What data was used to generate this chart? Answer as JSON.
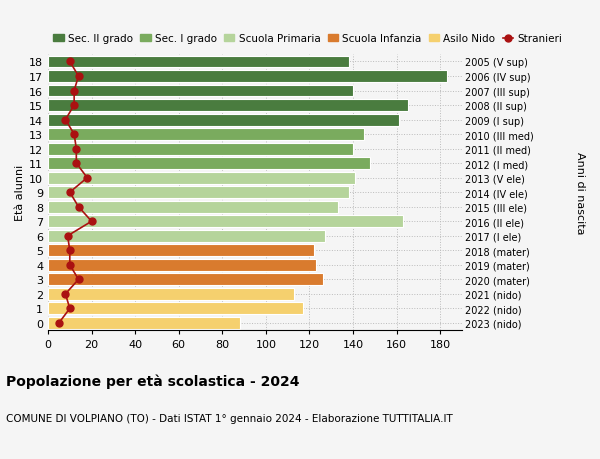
{
  "ages": [
    0,
    1,
    2,
    3,
    4,
    5,
    6,
    7,
    8,
    9,
    10,
    11,
    12,
    13,
    14,
    15,
    16,
    17,
    18
  ],
  "years": [
    "2023 (nido)",
    "2022 (nido)",
    "2021 (nido)",
    "2020 (mater)",
    "2019 (mater)",
    "2018 (mater)",
    "2017 (I ele)",
    "2016 (II ele)",
    "2015 (III ele)",
    "2014 (IV ele)",
    "2013 (V ele)",
    "2012 (I med)",
    "2011 (II med)",
    "2010 (III med)",
    "2009 (I sup)",
    "2008 (II sup)",
    "2007 (III sup)",
    "2006 (IV sup)",
    "2005 (V sup)"
  ],
  "values": [
    88,
    117,
    113,
    126,
    123,
    122,
    127,
    163,
    133,
    138,
    141,
    148,
    140,
    145,
    161,
    165,
    140,
    183,
    138
  ],
  "stranieri": [
    5,
    10,
    8,
    14,
    10,
    10,
    9,
    20,
    14,
    10,
    18,
    13,
    13,
    12,
    8,
    12,
    12,
    14,
    10
  ],
  "bar_colors": {
    "sec2": "#4a7c3f",
    "sec1": "#7aab5e",
    "primaria": "#b5d49b",
    "infanzia": "#d97b2e",
    "nido": "#f5d06e"
  },
  "categories": {
    "sec2": [
      14,
      15,
      16,
      17,
      18
    ],
    "sec1": [
      11,
      12,
      13
    ],
    "primaria": [
      6,
      7,
      8,
      9,
      10
    ],
    "infanzia": [
      3,
      4,
      5
    ],
    "nido": [
      0,
      1,
      2
    ]
  },
  "title": "Popolazione per età scolastica - 2024",
  "subtitle": "COMUNE DI VOLPIANO (TO) - Dati ISTAT 1° gennaio 2024 - Elaborazione TUTTITALIA.IT",
  "ylabel": "Età alunni",
  "right_ylabel": "Anni di nascita",
  "xlim": [
    0,
    190
  ],
  "xticks": [
    0,
    20,
    40,
    60,
    80,
    100,
    120,
    140,
    160,
    180
  ],
  "legend_labels": [
    "Sec. II grado",
    "Sec. I grado",
    "Scuola Primaria",
    "Scuola Infanzia",
    "Asilo Nido",
    "Stranieri"
  ],
  "legend_colors": [
    "#4a7c3f",
    "#7aab5e",
    "#b5d49b",
    "#d97b2e",
    "#f5d06e",
    "#aa1111"
  ],
  "stranieri_color": "#aa1111",
  "background_color": "#f5f5f5",
  "bar_height": 0.82
}
